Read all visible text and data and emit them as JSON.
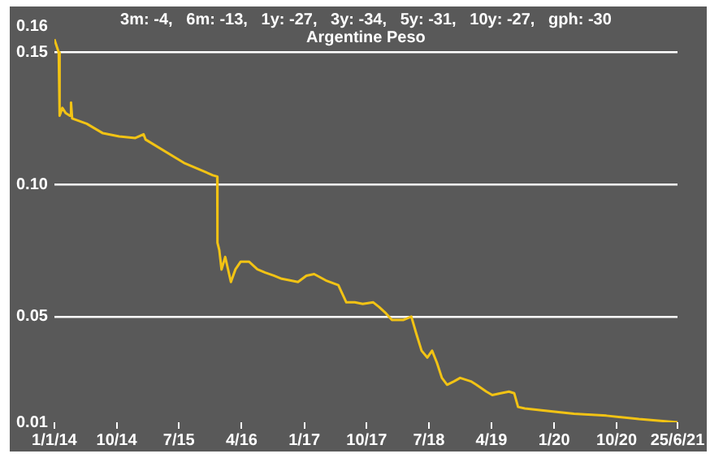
{
  "chart_data": {
    "type": "line",
    "title": "Argentine Peso",
    "subtitle": "3m: -4,   6m: -13,   1y: -27,   3y: -34,   5y: -31,   10y: -27,   gph: -30",
    "x": [
      "2014-01-01",
      "2014-01-20",
      "2014-01-24",
      "2014-02-05",
      "2014-02-20",
      "2014-03-10",
      "2014-03-15",
      "2014-03-20",
      "2014-05-23",
      "2014-08-02",
      "2014-10-12",
      "2014-12-22",
      "2015-01-27",
      "2015-02-05",
      "2015-07-23",
      "2015-11-27",
      "2015-12-16",
      "2015-12-17",
      "2015-12-25",
      "2016-01-04",
      "2016-01-20",
      "2016-02-14",
      "2016-03-05",
      "2016-03-28",
      "2016-05-03",
      "2016-06-09",
      "2016-07-13",
      "2016-08-20",
      "2016-09-24",
      "2016-10-30",
      "2016-12-04",
      "2017-01-10",
      "2017-02-13",
      "2017-04-05",
      "2017-05-30",
      "2017-07-04",
      "2017-08-10",
      "2017-09-14",
      "2017-10-30",
      "2017-11-25",
      "2017-12-25",
      "2018-01-20",
      "2018-03-10",
      "2018-04-15",
      "2018-05-08",
      "2018-05-30",
      "2018-06-24",
      "2018-07-15",
      "2018-08-05",
      "2018-08-27",
      "2018-09-19",
      "2018-10-19",
      "2018-11-15",
      "2019-01-01",
      "2019-01-25",
      "2019-03-10",
      "2019-04-05",
      "2019-05-12",
      "2019-06-17",
      "2019-07-10",
      "2019-07-27",
      "2019-08-26",
      "2019-11-07",
      "2020-03-28",
      "2020-08-17",
      "2021-01-07",
      "2021-06-25"
    ],
    "series": [
      {
        "color": "#f2c314",
        "values": [
          0.155,
          0.15,
          0.126,
          0.129,
          0.127,
          0.126,
          0.131,
          0.125,
          0.123,
          0.1194,
          0.1182,
          0.1176,
          0.119,
          0.117,
          0.1082,
          0.1035,
          0.103,
          0.078,
          0.0752,
          0.0678,
          0.0726,
          0.0631,
          0.0679,
          0.0708,
          0.0708,
          0.0679,
          0.0667,
          0.0655,
          0.0643,
          0.0637,
          0.0631,
          0.0655,
          0.0661,
          0.0637,
          0.0619,
          0.0554,
          0.0554,
          0.0548,
          0.0554,
          0.0536,
          0.0512,
          0.0487,
          0.0487,
          0.05,
          0.0432,
          0.0371,
          0.0345,
          0.0371,
          0.0326,
          0.0268,
          0.0242,
          0.0255,
          0.0268,
          0.0255,
          0.0242,
          0.0216,
          0.0203,
          0.021,
          0.0216,
          0.021,
          0.0158,
          0.0152,
          0.0145,
          0.0132,
          0.0125,
          0.0112,
          0.01
        ]
      }
    ],
    "xlim": [
      "2014-01-01",
      "2021-06-25"
    ],
    "xticks": [
      {
        "value": "2014-01-01",
        "label": "1/1/14"
      },
      {
        "value": "2014-10-01",
        "label": "10/14"
      },
      {
        "value": "2015-07-01",
        "label": "7/15"
      },
      {
        "value": "2016-04-01",
        "label": "4/16"
      },
      {
        "value": "2017-01-01",
        "label": "1/17"
      },
      {
        "value": "2017-10-01",
        "label": "10/17"
      },
      {
        "value": "2018-07-01",
        "label": "7/18"
      },
      {
        "value": "2019-04-01",
        "label": "4/19"
      },
      {
        "value": "2020-01-01",
        "label": "1/20"
      },
      {
        "value": "2020-10-01",
        "label": "10/20"
      },
      {
        "value": "2021-06-25",
        "label": "25/6/21"
      }
    ],
    "ylim": [
      0.01,
      0.16
    ],
    "yticks": [
      0.01,
      0.05,
      {
        "value": 0.1,
        "label": "0.10"
      },
      0.15,
      0.16
    ],
    "grid": "y",
    "legend": false,
    "marker": "none",
    "line_style": "solid"
  }
}
